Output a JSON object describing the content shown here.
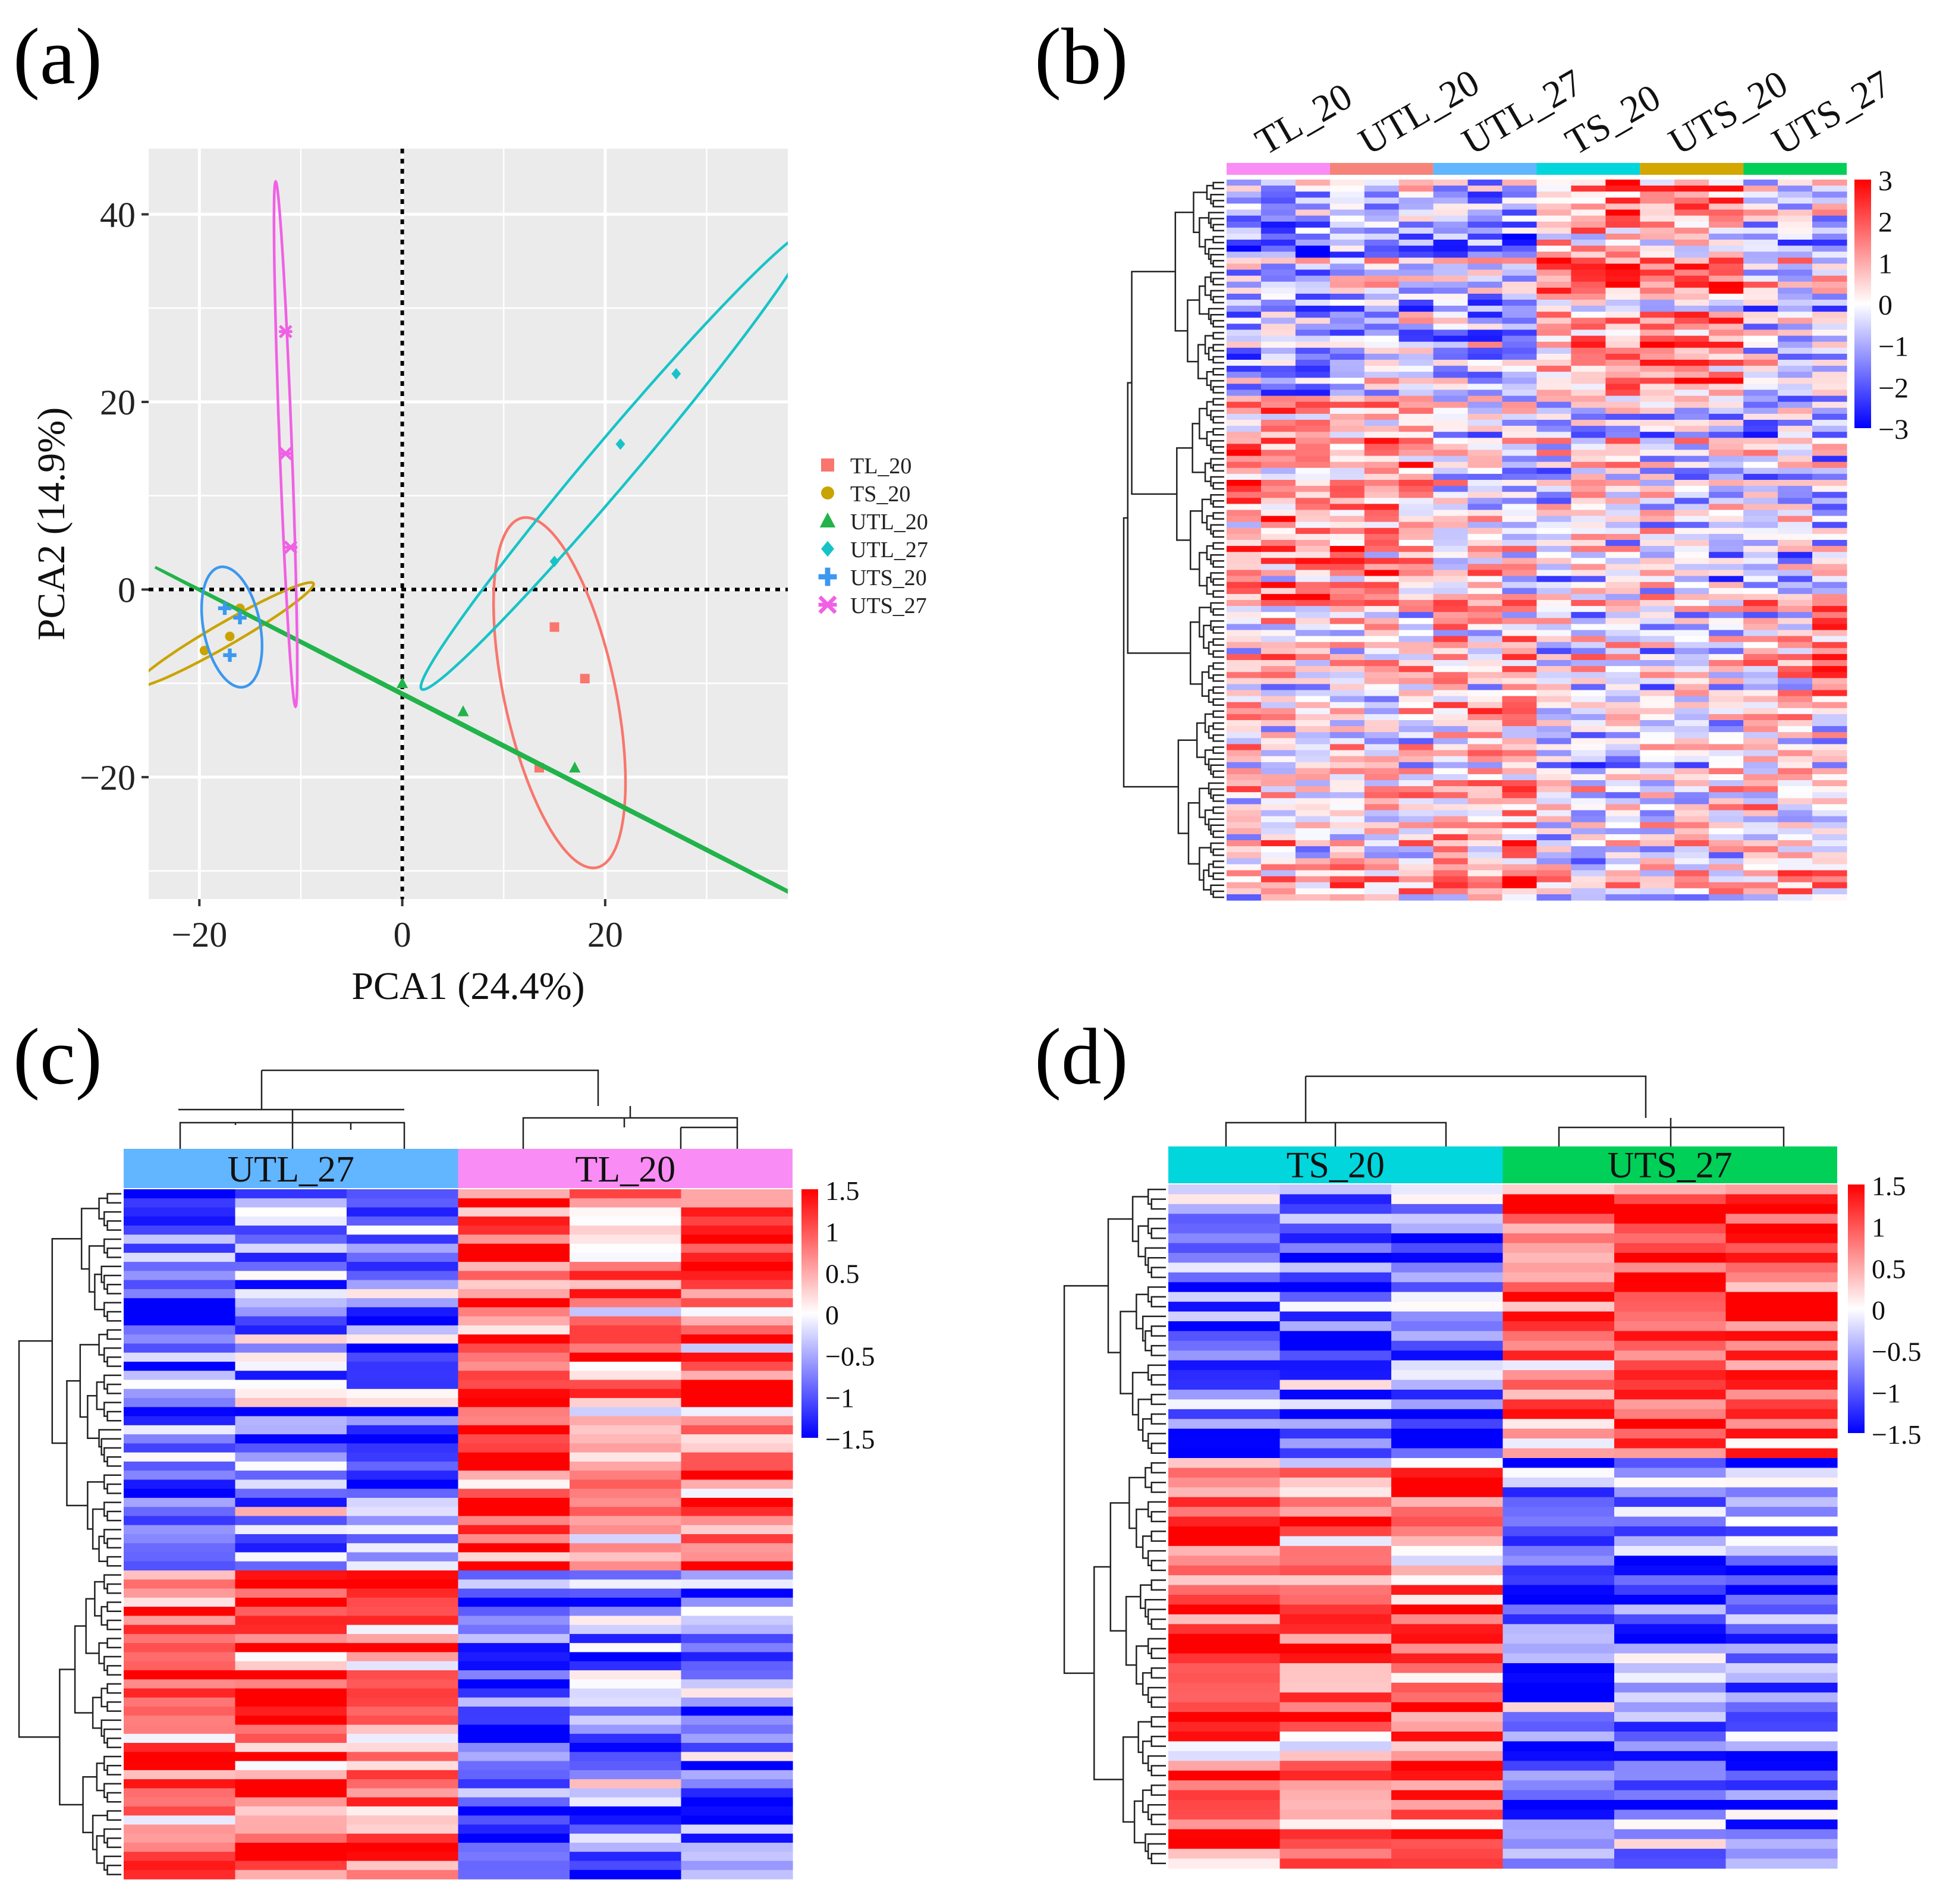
{
  "panels": {
    "a": {
      "label": "(a)"
    },
    "b": {
      "label": "(b)"
    },
    "c": {
      "label": "(c)"
    },
    "d": {
      "label": "(d)"
    }
  },
  "colors": {
    "TL_20": "#f8766d",
    "TS_20": "#c9a400",
    "UTL_20": "#22b34a",
    "UTL_27": "#17c3c7",
    "UTS_20": "#3c98f0",
    "UTS_27": "#f060e4",
    "anno_TL_20": "#f98cf5",
    "anno_UTL_20": "#f6837a",
    "anno_UTL_27": "#62b5ff",
    "anno_TS_20": "#00d6dc",
    "anno_UTS_20": "#d4a600",
    "anno_UTS_27": "#00cf58",
    "heat_high": "#ff0000",
    "heat_mid": "#ffffff",
    "heat_low": "#0000ff",
    "pca_panel_bg": "#ebebeb"
  },
  "chart_data": [
    {
      "panel": "a",
      "type": "scatter",
      "title": "",
      "xlabel": "PCA1 (24.4%)",
      "ylabel": "PCA2 (14.9%)",
      "xlim": [
        -25,
        38
      ],
      "ylim": [
        -33,
        47
      ],
      "xticks": [
        -20,
        0,
        20
      ],
      "yticks": [
        -20,
        0,
        20,
        40
      ],
      "xtick_labels": [
        "−20",
        "0",
        "20"
      ],
      "ytick_labels": [
        "−20",
        "0",
        "20",
        "40"
      ],
      "reference_lines": {
        "x": 0,
        "y": 0
      },
      "series": [
        {
          "name": "TL_20",
          "marker": "square",
          "points": [
            [
              15,
              -4
            ],
            [
              18,
              -9.5
            ],
            [
              13.5,
              -19
            ]
          ],
          "ellipse": {
            "center": [
              15.5,
              -11
            ],
            "semi_major": 19,
            "semi_minor": 5.5,
            "angle_deg": 101
          }
        },
        {
          "name": "TS_20",
          "marker": "circle",
          "points": [
            [
              -19.5,
              -6.5
            ],
            [
              -17,
              -5
            ],
            [
              -16,
              -2
            ]
          ],
          "ellipse": {
            "center": [
              -17.5,
              -4.8
            ],
            "semi_major": 10.3,
            "semi_minor": 1.2,
            "angle_deg": 32
          }
        },
        {
          "name": "UTL_20",
          "marker": "triangle",
          "points": [
            [
              0,
              -10
            ],
            [
              6,
              -13
            ],
            [
              17,
              -19
            ]
          ],
          "ellipse": {
            "center": [
              11.5,
              -17.5
            ],
            "semi_major": 41,
            "semi_minor": 0.12,
            "angle_deg": -29
          }
        },
        {
          "name": "UTL_27",
          "marker": "diamond",
          "points": [
            [
              15,
              3
            ],
            [
              21.5,
              15.5
            ],
            [
              27,
              23
            ]
          ],
          "ellipse": {
            "center": [
              21,
              13.8
            ],
            "semi_major": 31,
            "semi_minor": 2.3,
            "angle_deg": 52
          }
        },
        {
          "name": "UTS_20",
          "marker": "plus",
          "points": [
            [
              -17.5,
              -2
            ],
            [
              -16,
              -3
            ],
            [
              -17,
              -7
            ]
          ],
          "ellipse": {
            "center": [
              -16.8,
              -4
            ],
            "semi_major": 6.5,
            "semi_minor": 2.8,
            "angle_deg": 100
          }
        },
        {
          "name": "UTS_27",
          "marker": "asterisk",
          "points": [
            [
              -11.5,
              27.5
            ],
            [
              -11.5,
              14.5
            ],
            [
              -11,
              4.5
            ]
          ],
          "ellipse": {
            "center": [
              -11.5,
              15.5
            ],
            "semi_major": 28,
            "semi_minor": 0.6,
            "angle_deg": 92
          }
        }
      ],
      "legend": {
        "position": "right",
        "entries": [
          "TL_20",
          "TS_20",
          "UTL_20",
          "UTL_27",
          "UTS_20",
          "UTS_27"
        ]
      }
    },
    {
      "panel": "b",
      "type": "heatmap",
      "column_groups": [
        "TL_20",
        "UTL_20",
        "UTL_27",
        "TS_20",
        "UTS_20",
        "UTS_27"
      ],
      "columns_per_group": 3,
      "rows": 120,
      "color_scale": {
        "min": -3,
        "max": 3,
        "ticks": [
          3,
          2,
          1,
          0,
          -1,
          -2,
          -3
        ],
        "tick_labels": [
          "3",
          "2",
          "1",
          "0",
          "−1",
          "−2",
          "−3"
        ]
      },
      "row_clusters": [
        {
          "rows": 36,
          "means": [
            -0.8,
            -0.8,
            -0.8,
            -0.5,
            -0.5,
            -0.5,
            -0.9,
            -0.9,
            -0.9,
            0.9,
            1.1,
            1.3,
            0.9,
            1.2,
            1.2,
            -0.3,
            -0.4,
            -0.4
          ]
        },
        {
          "rows": 34,
          "means": [
            1.2,
            1.0,
            1.0,
            0.8,
            1.0,
            0.9,
            -0.2,
            -0.1,
            -0.1,
            -0.3,
            -0.2,
            -0.2,
            -0.3,
            -0.4,
            -0.3,
            -0.7,
            -0.6,
            -0.6
          ]
        },
        {
          "rows": 18,
          "means": [
            0.1,
            0,
            0.1,
            -0.1,
            0,
            0.1,
            0.6,
            0.4,
            0.6,
            -0.1,
            0,
            0,
            -0.2,
            -0.2,
            -0.1,
            0.2,
            0.3,
            1.2
          ]
        },
        {
          "rows": 32,
          "means": [
            0.3,
            0.2,
            0.1,
            0.4,
            0.5,
            0.4,
            1.0,
            1.1,
            1.0,
            -0.4,
            -0.3,
            -0.3,
            -0.1,
            0,
            0.1,
            0.3,
            0.5,
            0.4
          ]
        }
      ]
    },
    {
      "panel": "c",
      "type": "heatmap",
      "column_groups": [
        "UTL_27",
        "TL_20"
      ],
      "columns_per_group": 3,
      "rows": 76,
      "color_scale": {
        "min": -1.5,
        "max": 1.5,
        "ticks": [
          1.5,
          1,
          0.5,
          0,
          -0.5,
          -1,
          -1.5
        ],
        "tick_labels": [
          "1.5",
          "1",
          "0.5",
          "0",
          "−0.5",
          "−1",
          "−1.5"
        ]
      },
      "row_clusters": [
        {
          "rows": 42,
          "means": [
            -0.9,
            -0.6,
            -0.8,
            1.1,
            0.6,
            0.9
          ]
        },
        {
          "rows": 34,
          "means": [
            1.0,
            0.9,
            0.9,
            -1.0,
            -0.6,
            -0.7
          ]
        }
      ]
    },
    {
      "panel": "d",
      "type": "heatmap",
      "column_groups": [
        "TS_20",
        "UTS_27"
      ],
      "columns_per_group": 3,
      "rows": 70,
      "color_scale": {
        "min": -1.5,
        "max": 1.5,
        "ticks": [
          1.5,
          1,
          0.5,
          0,
          -0.5,
          -1,
          -1.5
        ],
        "tick_labels": [
          "1.5",
          "1",
          "0.5",
          "0",
          "−0.5",
          "−1",
          "−1.5"
        ]
      },
      "row_clusters": [
        {
          "rows": 28,
          "means": [
            -0.8,
            -0.9,
            -0.7,
            0.9,
            1.0,
            1.0
          ]
        },
        {
          "rows": 42,
          "means": [
            1.0,
            0.7,
            0.9,
            -0.9,
            -0.6,
            -0.7
          ]
        }
      ]
    }
  ]
}
